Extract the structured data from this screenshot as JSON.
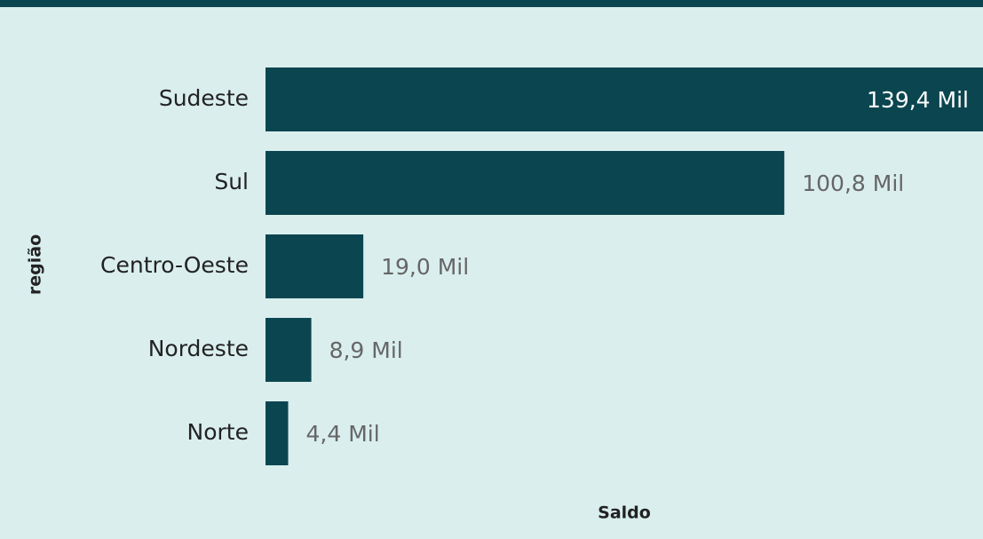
{
  "chart_data": {
    "type": "bar",
    "orientation": "horizontal",
    "categories": [
      "Sudeste",
      "Sul",
      "Centro-Oeste",
      "Nordeste",
      "Norte"
    ],
    "values": [
      139400,
      100800,
      19000,
      8900,
      4400
    ],
    "value_labels": [
      "139,4 Mil",
      "100,8 Mil",
      "19,0 Mil",
      "8,9 Mil",
      "4,4 Mil"
    ],
    "color": "#0b4650",
    "xlim": [
      0,
      139400
    ],
    "x_label": "Saldo",
    "y_label": "região"
  }
}
